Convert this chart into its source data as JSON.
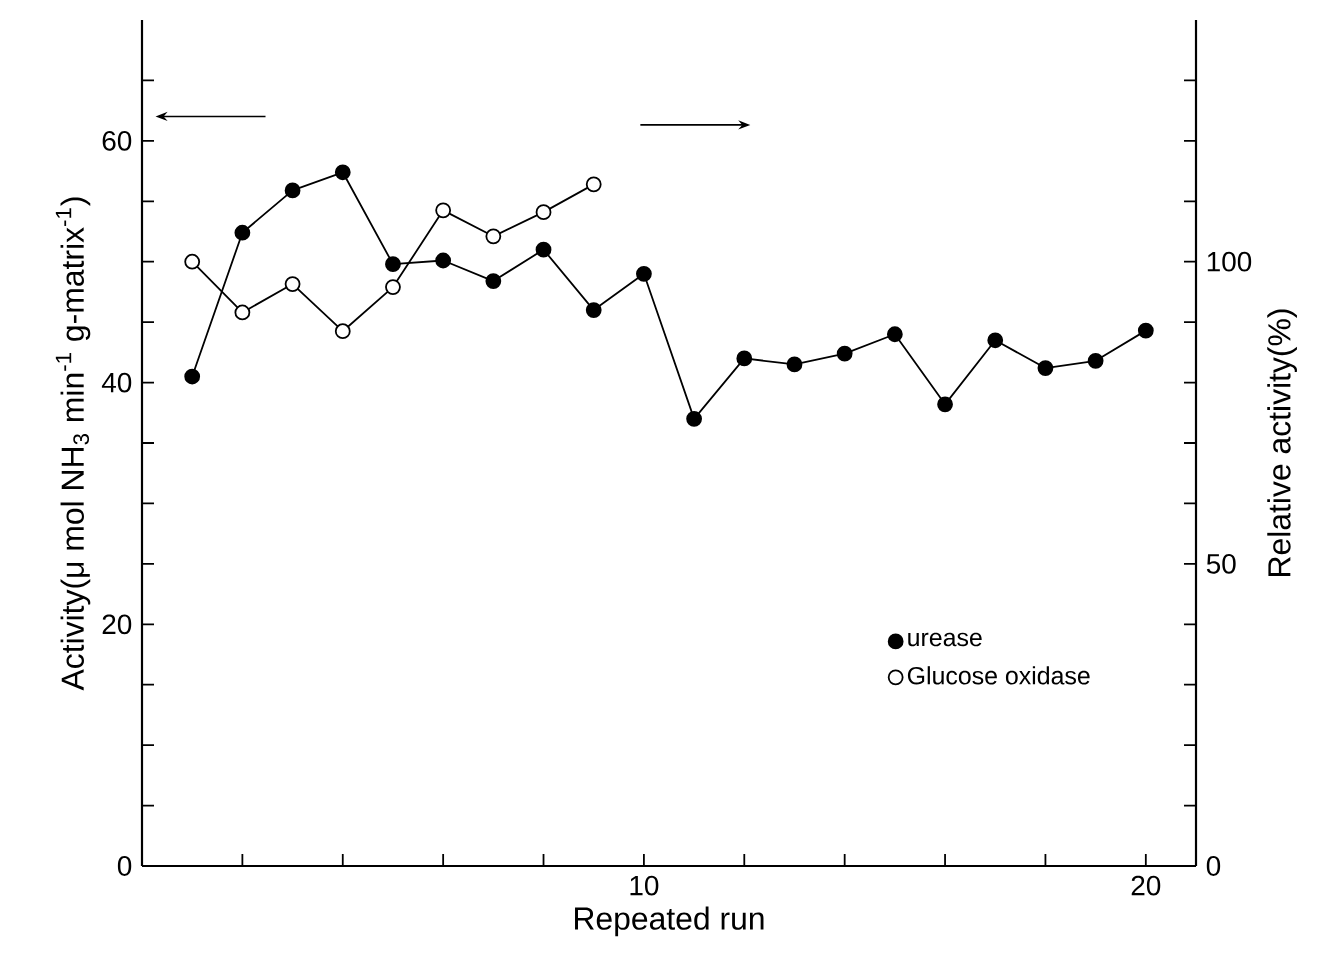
{
  "chart_data": {
    "type": "line",
    "xlabel": "Repeated run",
    "ylabel": "Activity(μ mol NH$_{3}$ min$^{-1}$ g-matrix$^{-1}$)",
    "y2label": "Relative activity(%)",
    "x": [
      1,
      2,
      3,
      4,
      5,
      6,
      7,
      8,
      9,
      10,
      11,
      12,
      13,
      14,
      15,
      16,
      17,
      18,
      19,
      20
    ],
    "xlim": [
      0,
      21
    ],
    "xticks": [
      {
        "value": 2,
        "label": null
      },
      {
        "value": 4,
        "label": null
      },
      {
        "value": 6,
        "label": null
      },
      {
        "value": 8,
        "label": null
      },
      10,
      {
        "value": 12,
        "label": null
      },
      {
        "value": 14,
        "label": null
      },
      {
        "value": 16,
        "label": null
      },
      {
        "value": 18,
        "label": null
      },
      20
    ],
    "ylim": [
      0,
      70
    ],
    "yticks": [
      0,
      {
        "value": 5,
        "label": null
      },
      {
        "value": 10,
        "label": null
      },
      {
        "value": 15,
        "label": null
      },
      20,
      {
        "value": 25,
        "label": null
      },
      {
        "value": 30,
        "label": null
      },
      {
        "value": 35,
        "label": null
      },
      40,
      {
        "value": 45,
        "label": null
      },
      {
        "value": 50,
        "label": null
      },
      {
        "value": 55,
        "label": null
      },
      60,
      {
        "value": 65,
        "label": null
      }
    ],
    "y2lim": [
      0,
      140
    ],
    "y2ticks": [
      0,
      {
        "value": 10,
        "label": null
      },
      {
        "value": 20,
        "label": null
      },
      {
        "value": 30,
        "label": null
      },
      {
        "value": 40,
        "label": null
      },
      50,
      {
        "value": 60,
        "label": null
      },
      {
        "value": 70,
        "label": null
      },
      {
        "value": 80,
        "label": null
      },
      {
        "value": 90,
        "label": null
      },
      100,
      {
        "value": 110,
        "label": null
      },
      {
        "value": 120,
        "label": null
      },
      {
        "value": 130,
        "label": null
      }
    ],
    "legend": "right",
    "grid": false,
    "series": [
      {
        "name": "urease",
        "color": "#000000",
        "marker": "circle",
        "axis": "y",
        "values": [
          40.5,
          52.4,
          55.9,
          57.4,
          49.8,
          50.1,
          48.4,
          51.0,
          46.0,
          49.0,
          37.0,
          42.0,
          41.5,
          42.4,
          44.0,
          38.2,
          43.5,
          41.2,
          41.8,
          44.3
        ]
      },
      {
        "name": "Glucose oxidase",
        "color": "#000000",
        "marker": "open circle",
        "axis": "y2",
        "x": [
          1,
          2,
          3,
          4,
          5,
          6,
          7,
          8,
          9
        ],
        "values": [
          100,
          91.6,
          96.3,
          88.5,
          95.8,
          108.5,
          104.2,
          108.2,
          112.8
        ]
      }
    ]
  }
}
